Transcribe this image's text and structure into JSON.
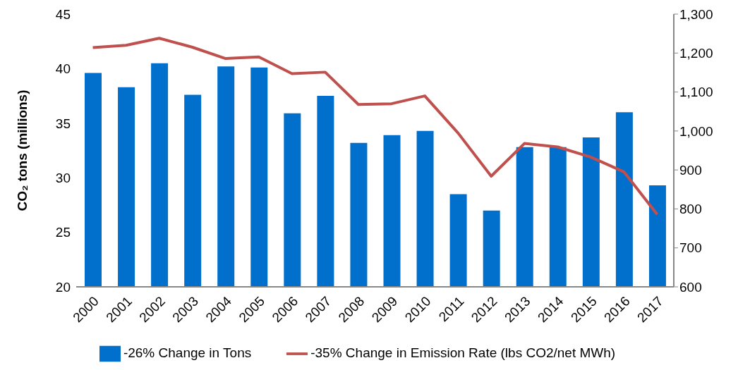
{
  "chart_data": {
    "type": "bar",
    "ylabel": "CO₂ tons (millions)",
    "categories": [
      "2000",
      "2001",
      "2002",
      "2003",
      "2004",
      "2005",
      "2006",
      "2007",
      "2008",
      "2009",
      "2010",
      "2011",
      "2012",
      "2013",
      "2014",
      "2015",
      "2016",
      "2017"
    ],
    "series": [
      {
        "name": "-26% Change in Tons",
        "color": "#0070cc",
        "values": [
          39.6,
          38.3,
          40.5,
          37.6,
          40.2,
          40.1,
          35.9,
          37.5,
          33.2,
          33.9,
          34.3,
          28.5,
          27.0,
          32.8,
          32.8,
          33.7,
          36.0,
          29.3
        ]
      },
      {
        "name": "-35% Change in Emission Rate (lbs CO2/net MWh)",
        "type": "line",
        "axis": "y2",
        "color": "#c0504d",
        "values": [
          1214,
          1220,
          1238,
          1215,
          1186,
          1190,
          1147,
          1151,
          1068,
          1070,
          1090,
          995,
          884,
          968,
          959,
          933,
          895,
          786
        ]
      }
    ],
    "ylim": [
      20,
      45
    ],
    "yticks": [
      20,
      25,
      30,
      35,
      40,
      45
    ],
    "y2lim": [
      600,
      1300
    ],
    "y2ticks": [
      600,
      700,
      800,
      900,
      {
        "value": 1000,
        "label": "1,000"
      },
      {
        "value": 1100,
        "label": "1,100"
      },
      {
        "value": 1200,
        "label": "1,200"
      },
      {
        "value": 1300,
        "label": "1,300"
      }
    ],
    "legend": "bottom",
    "marker": "none",
    "line_style": "solid"
  }
}
